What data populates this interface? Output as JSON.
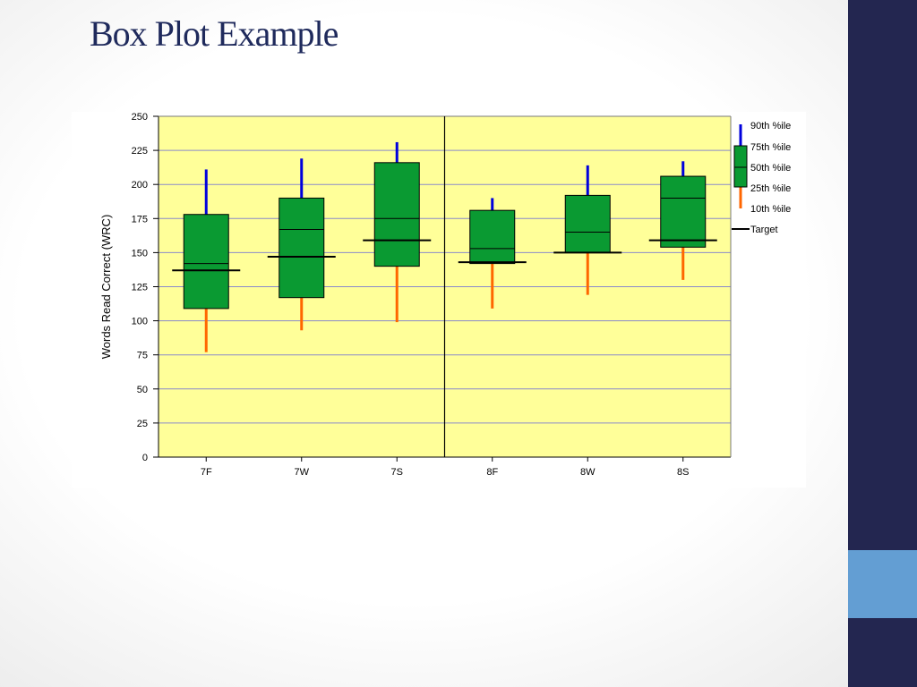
{
  "slide": {
    "title": "Box Plot Example"
  },
  "colors": {
    "plot_background": "#ffff99",
    "box_fill": "#0a9a32",
    "upper_whisker": "#0000dd",
    "lower_whisker": "#ff6600",
    "target_line": "#000000",
    "gridline": "#8a8acb",
    "sidebar": "#232650",
    "sidebar_accent": "#639ed3",
    "title": "#1f2a5c"
  },
  "chart_data": {
    "type": "box",
    "title": "",
    "xlabel": "",
    "ylabel": "Words Read Correct (WRC)",
    "ylim": [
      0,
      250
    ],
    "yticks": [
      0,
      25,
      50,
      75,
      100,
      125,
      150,
      175,
      200,
      225,
      250
    ],
    "grid": true,
    "divider_after_category": "7S",
    "legend_position": "right",
    "legend": [
      "90th %ile",
      "75th %ile",
      "50th %ile",
      "25th %ile",
      "10th %ile",
      "Target"
    ],
    "categories": [
      "7F",
      "7W",
      "7S",
      "8F",
      "8W",
      "8S"
    ],
    "p10": [
      77,
      93,
      99,
      109,
      119,
      130
    ],
    "p25": [
      109,
      117,
      140,
      142,
      150,
      154
    ],
    "p50": [
      142,
      167,
      175,
      153,
      165,
      190
    ],
    "p75": [
      178,
      190,
      216,
      181,
      192,
      206
    ],
    "p90": [
      211,
      219,
      231,
      190,
      214,
      217
    ],
    "target": [
      137,
      147,
      159,
      143,
      150,
      159
    ]
  }
}
